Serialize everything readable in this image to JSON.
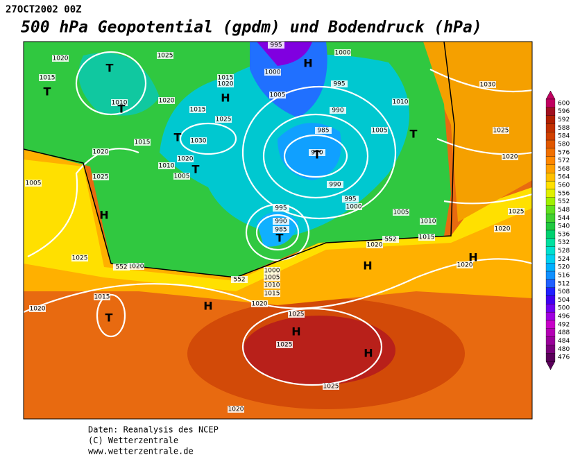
{
  "header": {
    "date": "27OCT2002 00Z",
    "title": "500 hPa Geopotential (gpdm) und Bodendruck (hPa)"
  },
  "colorbar": {
    "levels": [
      600,
      596,
      592,
      588,
      584,
      580,
      576,
      572,
      568,
      564,
      560,
      556,
      552,
      548,
      544,
      540,
      536,
      532,
      528,
      524,
      520,
      516,
      512,
      508,
      504,
      500,
      496,
      492,
      488,
      484,
      480,
      476
    ],
    "colors": [
      "#c00060",
      "#a01020",
      "#b02000",
      "#c03000",
      "#d04000",
      "#e05800",
      "#f07000",
      "#ff8800",
      "#ffa000",
      "#ffc000",
      "#ffe000",
      "#e0f000",
      "#a0f000",
      "#60e020",
      "#40d030",
      "#20c840",
      "#00d070",
      "#00e0a0",
      "#00e0d0",
      "#00d0f0",
      "#00b0ff",
      "#1090ff",
      "#2060ff",
      "#2020ff",
      "#4000f0",
      "#7000f0",
      "#a000e0",
      "#c800c8",
      "#b400b4",
      "#9a009a",
      "#7a007a",
      "#5a005a"
    ]
  },
  "map": {
    "labels": [
      "995",
      "1000",
      "H",
      "1000",
      "1020",
      "T",
      "1025",
      "1015",
      "T",
      "1010",
      "T",
      "1020",
      "1015",
      "1020",
      "H",
      "1005",
      "995",
      "1010",
      "1030",
      "1015",
      "1025",
      "990",
      "985",
      "970",
      "T",
      "1005",
      "T",
      "1025",
      "1030",
      "1015",
      "T",
      "1020",
      "1020",
      "1010",
      "T",
      "1005",
      "1020",
      "1025",
      "1005",
      "990",
      "995",
      "1000",
      "1005",
      "1025",
      "H",
      "995",
      "990",
      "985",
      "T",
      "1010",
      "1020",
      "1015",
      "1020",
      "552",
      "1025",
      "1020",
      "552",
      "H",
      "H",
      "1020",
      "1000",
      "1005",
      "1010",
      "1015",
      "1020",
      "552",
      "H",
      "1015",
      "1020",
      "T",
      "1025",
      "H",
      "1025",
      "H",
      "1025",
      "1020"
    ]
  },
  "footer": {
    "lines": [
      "Daten: Reanalysis des NCEP",
      "(C) Wetterzentrale",
      "www.wetterzentrale.de"
    ]
  }
}
